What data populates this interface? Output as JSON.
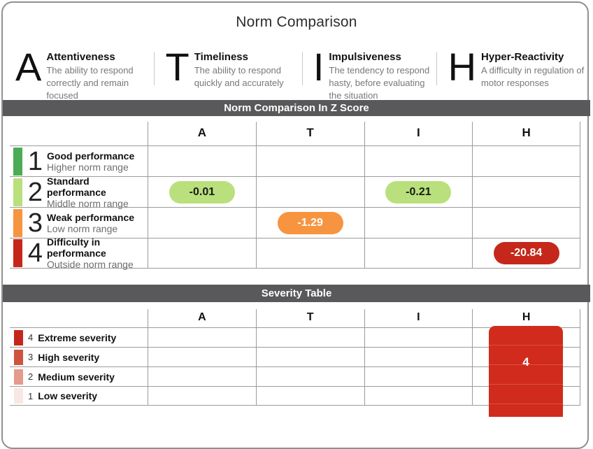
{
  "page": {
    "title": "Norm Comparison",
    "colors": {
      "banner_bg": "#59595b",
      "grid_line": "#9b9b9b",
      "level1_green": "#4cab55",
      "level2_light_green": "#b9e07c",
      "level3_orange": "#f79440",
      "level4_red": "#c5281b",
      "severity3_red": "#cf5440",
      "severity2_salmon": "#e49b8c",
      "severity1_pink": "#f8e7e2",
      "severity_block_red": "#d02b1c"
    }
  },
  "domains": [
    {
      "letter": "A",
      "title": "Attentiveness",
      "description": "The ability to respond correctly and remain focused"
    },
    {
      "letter": "T",
      "title": "Timeliness",
      "description": "The ability to respond quickly and accurately"
    },
    {
      "letter": "I",
      "title": "Impulsiveness",
      "description": "The tendency to respond hasty, before evaluating the situation"
    },
    {
      "letter": "H",
      "title": "Hyper-Reactivity",
      "description": "A difficulty in regulation of motor responses"
    }
  ],
  "z_table": {
    "banner": "Norm Comparison In Z Score",
    "columns": [
      "A",
      "T",
      "I",
      "H"
    ],
    "rows": [
      {
        "level": "1",
        "title": "Good performance",
        "subtitle": "Higher norm range",
        "color": "#4cab55"
      },
      {
        "level": "2",
        "title": "Standard performance",
        "subtitle": "Middle norm range",
        "color": "#b9e07c"
      },
      {
        "level": "3",
        "title": "Weak performance",
        "subtitle": "Low norm range",
        "color": "#f79440"
      },
      {
        "level": "4",
        "title": "Difficulty in performance",
        "subtitle": "Outside norm range",
        "color": "#c5281b"
      }
    ],
    "scores": {
      "A": {
        "value": "-0.01",
        "row_level": "2",
        "pill_color": "#b9e07c"
      },
      "T": {
        "value": "-1.29",
        "row_level": "3",
        "pill_color": "#f79440"
      },
      "I": {
        "value": "-0.21",
        "row_level": "2",
        "pill_color": "#b9e07c"
      },
      "H": {
        "value": "-20.84",
        "row_level": "4",
        "pill_color": "#c5281b"
      }
    }
  },
  "severity_table": {
    "banner": "Severity Table",
    "columns": [
      "A",
      "T",
      "I",
      "H"
    ],
    "rows": [
      {
        "level": "4",
        "label": "Extreme severity",
        "color": "#c5281b"
      },
      {
        "level": "3",
        "label": "High severity",
        "color": "#cf5440"
      },
      {
        "level": "2",
        "label": "Medium severity",
        "color": "#e49b8c"
      },
      {
        "level": "1",
        "label": "Low severity",
        "color": "#f8e7e2"
      }
    ],
    "result": {
      "column": "H",
      "value": "4",
      "color": "#d02b1c"
    }
  }
}
